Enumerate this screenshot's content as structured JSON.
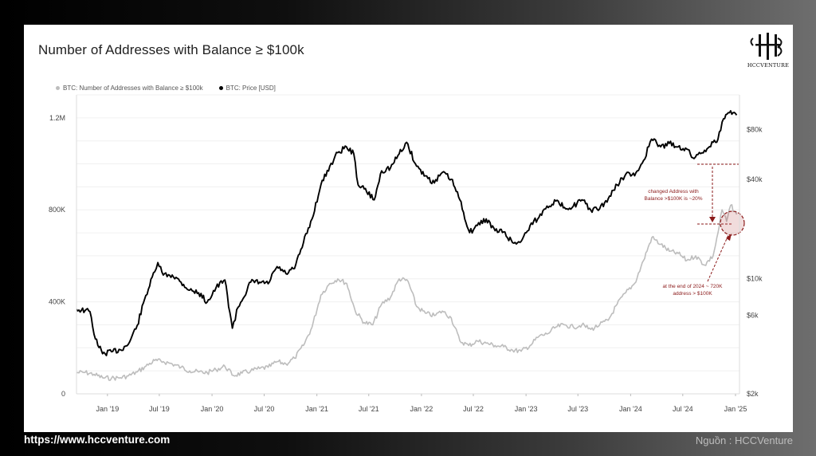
{
  "website": "https://www.hccventure.com",
  "source_note": "Nguồn : HCCVenture",
  "logo_text": "HCCVENTURE",
  "chart_data": {
    "type": "line",
    "title": "Number of Addresses with Balance ≥ $100k",
    "legend_position": "top-left",
    "grid": true,
    "x_range": [
      "2018-09-15",
      "2025-01-15"
    ],
    "x_tick_labels": [
      "Jan '19",
      "Jul '19",
      "Jan '20",
      "Jul '20",
      "Jan '21",
      "Jul '21",
      "Jan '22",
      "Jul '22",
      "Jan '23",
      "Jul '23",
      "Jan '24",
      "Jul '24",
      "Jan '25"
    ],
    "x_tick_dates": [
      "2019-01-01",
      "2019-07-01",
      "2020-01-01",
      "2020-07-01",
      "2021-01-01",
      "2021-07-01",
      "2022-01-01",
      "2022-07-01",
      "2023-01-01",
      "2023-07-01",
      "2024-01-01",
      "2024-07-01",
      "2025-01-01"
    ],
    "y_left": {
      "scale": "linear",
      "ylim": [
        0,
        1300000
      ],
      "tick_values": [
        0,
        400000,
        800000,
        1200000
      ],
      "tick_labels": [
        "0",
        "400K",
        "800K",
        "1.2M"
      ]
    },
    "y_right": {
      "scale": "log",
      "ylim": [
        2000,
        130000
      ],
      "tick_values": [
        2000,
        6000,
        10000,
        40000,
        80000
      ],
      "tick_labels": [
        "$2k",
        "$6k",
        "$10k",
        "$40k",
        "$80k"
      ]
    },
    "series": [
      {
        "name": "BTC: Number of Addresses with Balance ≥ $100k",
        "axis": "left",
        "color": "#bdbdbd",
        "x": [
          "2018-09-15",
          "2018-10-15",
          "2018-11-15",
          "2018-12-15",
          "2019-01-15",
          "2019-02-15",
          "2019-03-15",
          "2019-04-15",
          "2019-05-15",
          "2019-06-15",
          "2019-07-15",
          "2019-08-15",
          "2019-09-15",
          "2019-10-15",
          "2019-11-15",
          "2019-12-15",
          "2020-01-15",
          "2020-02-15",
          "2020-03-15",
          "2020-04-15",
          "2020-05-15",
          "2020-06-15",
          "2020-07-15",
          "2020-08-15",
          "2020-09-15",
          "2020-10-15",
          "2020-11-15",
          "2020-12-15",
          "2021-01-15",
          "2021-02-15",
          "2021-03-15",
          "2021-04-15",
          "2021-05-15",
          "2021-06-15",
          "2021-07-15",
          "2021-08-15",
          "2021-09-15",
          "2021-10-15",
          "2021-11-15",
          "2021-12-15",
          "2022-01-15",
          "2022-02-15",
          "2022-03-15",
          "2022-04-15",
          "2022-05-15",
          "2022-06-15",
          "2022-07-15",
          "2022-08-15",
          "2022-09-15",
          "2022-10-15",
          "2022-11-15",
          "2022-12-15",
          "2023-01-15",
          "2023-02-15",
          "2023-03-15",
          "2023-04-15",
          "2023-05-15",
          "2023-06-15",
          "2023-07-15",
          "2023-08-15",
          "2023-09-15",
          "2023-10-15",
          "2023-11-15",
          "2023-12-15",
          "2024-01-15",
          "2024-02-15",
          "2024-03-15",
          "2024-04-15",
          "2024-05-15",
          "2024-06-15",
          "2024-07-15",
          "2024-08-15",
          "2024-09-15",
          "2024-10-15",
          "2024-11-01",
          "2024-11-15",
          "2024-12-01",
          "2024-12-15",
          "2025-01-05"
        ],
        "values": [
          92000,
          93000,
          85000,
          70000,
          68000,
          70000,
          78000,
          95000,
          120000,
          145000,
          140000,
          130000,
          115000,
          100000,
          95000,
          92000,
          105000,
          120000,
          80000,
          90000,
          100000,
          110000,
          115000,
          140000,
          130000,
          155000,
          210000,
          290000,
          430000,
          480000,
          500000,
          480000,
          360000,
          310000,
          300000,
          390000,
          420000,
          500000,
          490000,
          380000,
          350000,
          340000,
          360000,
          330000,
          230000,
          210000,
          230000,
          220000,
          210000,
          205000,
          190000,
          185000,
          210000,
          250000,
          260000,
          290000,
          300000,
          290000,
          300000,
          280000,
          300000,
          320000,
          390000,
          440000,
          480000,
          580000,
          680000,
          650000,
          620000,
          610000,
          580000,
          600000,
          560000,
          600000,
          700000,
          800000,
          750000,
          820000,
          780000
        ]
      },
      {
        "name": "BTC: Price [USD]",
        "axis": "right",
        "color": "#000000",
        "x": [
          "2018-09-15",
          "2018-10-15",
          "2018-11-01",
          "2018-11-20",
          "2018-12-15",
          "2019-01-15",
          "2019-02-15",
          "2019-03-15",
          "2019-04-15",
          "2019-05-15",
          "2019-06-15",
          "2019-06-26",
          "2019-07-15",
          "2019-08-15",
          "2019-09-15",
          "2019-10-15",
          "2019-11-15",
          "2019-12-15",
          "2020-01-15",
          "2020-02-15",
          "2020-03-12",
          "2020-04-01",
          "2020-05-15",
          "2020-06-15",
          "2020-07-15",
          "2020-08-15",
          "2020-09-15",
          "2020-10-15",
          "2020-11-15",
          "2020-12-15",
          "2021-01-15",
          "2021-02-15",
          "2021-03-15",
          "2021-04-14",
          "2021-05-10",
          "2021-05-25",
          "2021-06-15",
          "2021-07-20",
          "2021-08-15",
          "2021-09-15",
          "2021-10-15",
          "2021-11-10",
          "2021-12-15",
          "2022-01-15",
          "2022-02-15",
          "2022-03-15",
          "2022-04-15",
          "2022-05-15",
          "2022-06-18",
          "2022-07-15",
          "2022-08-15",
          "2022-09-15",
          "2022-10-15",
          "2022-11-15",
          "2022-12-15",
          "2023-01-15",
          "2023-02-15",
          "2023-03-15",
          "2023-04-15",
          "2023-05-15",
          "2023-06-15",
          "2023-07-15",
          "2023-08-15",
          "2023-09-15",
          "2023-10-15",
          "2023-11-15",
          "2023-12-15",
          "2024-01-15",
          "2024-02-15",
          "2024-03-14",
          "2024-04-15",
          "2024-05-15",
          "2024-06-15",
          "2024-07-15",
          "2024-08-05",
          "2024-09-15",
          "2024-10-15",
          "2024-11-01",
          "2024-11-20",
          "2024-12-15",
          "2025-01-05"
        ],
        "values": [
          6500,
          6400,
          6300,
          4300,
          3500,
          3600,
          3700,
          4000,
          5200,
          7900,
          11000,
          12500,
          10500,
          10500,
          9500,
          8500,
          8200,
          7200,
          8800,
          9800,
          5000,
          6700,
          9500,
          9500,
          9300,
          11800,
          10700,
          11500,
          16500,
          23000,
          37000,
          48000,
          58000,
          63000,
          57000,
          37000,
          35000,
          30000,
          45000,
          47000,
          57000,
          67000,
          48000,
          42000,
          38000,
          44000,
          40000,
          30000,
          19000,
          21000,
          23000,
          19500,
          19200,
          16500,
          16800,
          21000,
          23500,
          27500,
          29500,
          27000,
          27500,
          30000,
          26000,
          26500,
          30500,
          37000,
          43000,
          42000,
          52000,
          70000,
          63000,
          66000,
          63000,
          61000,
          54000,
          60000,
          67000,
          70000,
          93000,
          104000,
          98000
        ]
      }
    ],
    "annotations": [
      "changed Address with Balance >$100K is ~20%",
      "at the end of 2024 ~ 720K address > $100K"
    ]
  }
}
